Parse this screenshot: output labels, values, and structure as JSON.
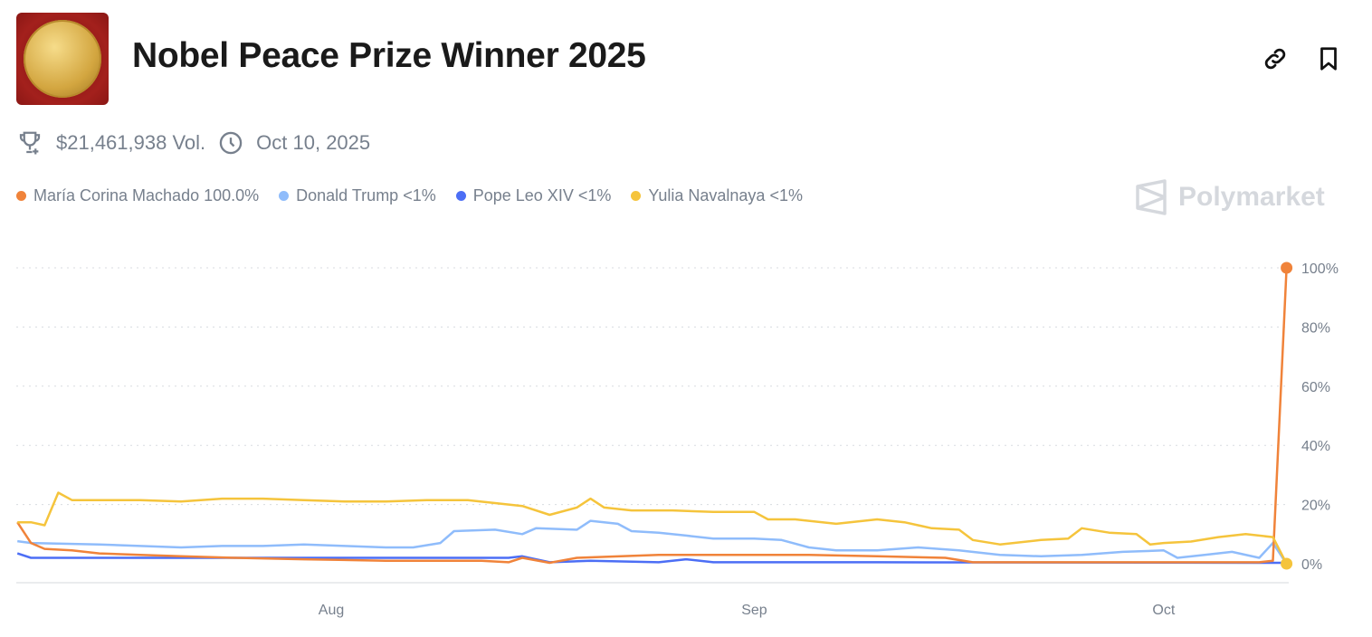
{
  "header": {
    "title": "Nobel Peace Prize Winner 2025",
    "icons": [
      "nobel-medal-image",
      "link-icon",
      "bookmark-icon"
    ]
  },
  "meta": {
    "volume": "$21,461,938 Vol.",
    "date": "Oct 10, 2025",
    "icons": [
      "trophy-icon",
      "clock-icon"
    ]
  },
  "brand": {
    "name": "Polymarket"
  },
  "legend": [
    {
      "label": "María Corina Machado 100.0%",
      "color": "#F0833A"
    },
    {
      "label": "Donald Trump <1%",
      "color": "#8FBCFB"
    },
    {
      "label": "Pope Leo XIV <1%",
      "color": "#4C6EF5"
    },
    {
      "label": "Yulia Navalnaya <1%",
      "color": "#F5C43C"
    }
  ],
  "chart_data": {
    "type": "line",
    "ylim": [
      0,
      100
    ],
    "yticks": [
      "0%",
      "20%",
      "40%",
      "60%",
      "80%",
      "100%"
    ],
    "ytick_values": [
      0,
      20,
      40,
      60,
      80,
      100
    ],
    "xticks": [
      {
        "label": "Aug",
        "date": "2025-08-01"
      },
      {
        "label": "Sep",
        "date": "2025-09-01"
      },
      {
        "label": "Oct",
        "date": "2025-10-01"
      }
    ],
    "grid": "horizontal dotted",
    "legend_placement": "top-left",
    "series": [
      {
        "name": "María Corina Machado",
        "color": "#F0833A",
        "points": [
          [
            "2025-07-09",
            14
          ],
          [
            "2025-07-10",
            7
          ],
          [
            "2025-07-11",
            5
          ],
          [
            "2025-07-13",
            4.5
          ],
          [
            "2025-07-15",
            3.5
          ],
          [
            "2025-07-18",
            3
          ],
          [
            "2025-07-21",
            2.5
          ],
          [
            "2025-07-25",
            2
          ],
          [
            "2025-07-30",
            1.5
          ],
          [
            "2025-08-05",
            1
          ],
          [
            "2025-08-12",
            1
          ],
          [
            "2025-08-14",
            0.5
          ],
          [
            "2025-08-15",
            2
          ],
          [
            "2025-08-17",
            0.3
          ],
          [
            "2025-08-19",
            2
          ],
          [
            "2025-08-25",
            3
          ],
          [
            "2025-09-05",
            3
          ],
          [
            "2025-09-10",
            2.5
          ],
          [
            "2025-09-15",
            2
          ],
          [
            "2025-09-17",
            0.5
          ],
          [
            "2025-10-08",
            0.5
          ],
          [
            "2025-10-09",
            1
          ],
          [
            "2025-10-10",
            100
          ]
        ]
      },
      {
        "name": "Donald Trump",
        "color": "#8FBCFB",
        "points": [
          [
            "2025-07-09",
            7.6
          ],
          [
            "2025-07-10",
            7
          ],
          [
            "2025-07-15",
            6.5
          ],
          [
            "2025-07-21",
            5.5
          ],
          [
            "2025-07-24",
            6
          ],
          [
            "2025-07-27",
            6
          ],
          [
            "2025-07-30",
            6.5
          ],
          [
            "2025-08-02",
            6
          ],
          [
            "2025-08-05",
            5.5
          ],
          [
            "2025-08-07",
            5.5
          ],
          [
            "2025-08-09",
            7
          ],
          [
            "2025-08-10",
            11
          ],
          [
            "2025-08-13",
            11.5
          ],
          [
            "2025-08-15",
            10
          ],
          [
            "2025-08-16",
            12
          ],
          [
            "2025-08-19",
            11.5
          ],
          [
            "2025-08-20",
            14.5
          ],
          [
            "2025-08-22",
            13.5
          ],
          [
            "2025-08-23",
            11
          ],
          [
            "2025-08-25",
            10.5
          ],
          [
            "2025-08-27",
            9.5
          ],
          [
            "2025-08-29",
            8.5
          ],
          [
            "2025-09-01",
            8.5
          ],
          [
            "2025-09-03",
            8
          ],
          [
            "2025-09-05",
            5.5
          ],
          [
            "2025-09-07",
            4.5
          ],
          [
            "2025-09-10",
            4.5
          ],
          [
            "2025-09-13",
            5.5
          ],
          [
            "2025-09-16",
            4.5
          ],
          [
            "2025-09-19",
            3
          ],
          [
            "2025-09-22",
            2.5
          ],
          [
            "2025-09-25",
            3
          ],
          [
            "2025-09-28",
            4
          ],
          [
            "2025-10-01",
            4.5
          ],
          [
            "2025-10-02",
            2
          ],
          [
            "2025-10-04",
            3
          ],
          [
            "2025-10-06",
            4
          ],
          [
            "2025-10-08",
            2
          ],
          [
            "2025-10-09",
            7
          ],
          [
            "2025-10-10",
            0
          ]
        ]
      },
      {
        "name": "Pope Leo XIV",
        "color": "#4C6EF5",
        "points": [
          [
            "2025-07-09",
            3.5
          ],
          [
            "2025-07-10",
            2
          ],
          [
            "2025-08-14",
            2
          ],
          [
            "2025-08-15",
            2.5
          ],
          [
            "2025-08-17",
            0.5
          ],
          [
            "2025-08-20",
            1
          ],
          [
            "2025-08-25",
            0.5
          ],
          [
            "2025-08-27",
            1.5
          ],
          [
            "2025-08-29",
            0.5
          ],
          [
            "2025-09-10",
            0.5
          ],
          [
            "2025-10-10",
            0.3
          ]
        ]
      },
      {
        "name": "Yulia Navalnaya",
        "color": "#F5C43C",
        "points": [
          [
            "2025-07-09",
            14
          ],
          [
            "2025-07-10",
            14
          ],
          [
            "2025-07-11",
            13
          ],
          [
            "2025-07-12",
            24
          ],
          [
            "2025-07-13",
            21.5
          ],
          [
            "2025-07-18",
            21.5
          ],
          [
            "2025-07-21",
            21
          ],
          [
            "2025-07-24",
            22
          ],
          [
            "2025-07-27",
            22
          ],
          [
            "2025-07-30",
            21.5
          ],
          [
            "2025-08-02",
            21
          ],
          [
            "2025-08-05",
            21
          ],
          [
            "2025-08-08",
            21.5
          ],
          [
            "2025-08-11",
            21.5
          ],
          [
            "2025-08-13",
            20.5
          ],
          [
            "2025-08-15",
            19.5
          ],
          [
            "2025-08-17",
            16.5
          ],
          [
            "2025-08-19",
            19
          ],
          [
            "2025-08-20",
            22
          ],
          [
            "2025-08-21",
            19
          ],
          [
            "2025-08-23",
            18
          ],
          [
            "2025-08-26",
            18
          ],
          [
            "2025-08-29",
            17.5
          ],
          [
            "2025-09-01",
            17.5
          ],
          [
            "2025-09-02",
            15
          ],
          [
            "2025-09-04",
            15
          ],
          [
            "2025-09-07",
            13.5
          ],
          [
            "2025-09-10",
            15
          ],
          [
            "2025-09-12",
            14
          ],
          [
            "2025-09-14",
            12
          ],
          [
            "2025-09-16",
            11.5
          ],
          [
            "2025-09-17",
            8
          ],
          [
            "2025-09-19",
            6.5
          ],
          [
            "2025-09-22",
            8
          ],
          [
            "2025-09-24",
            8.5
          ],
          [
            "2025-09-25",
            12
          ],
          [
            "2025-09-27",
            10.5
          ],
          [
            "2025-09-29",
            10
          ],
          [
            "2025-09-30",
            6.5
          ],
          [
            "2025-10-01",
            7
          ],
          [
            "2025-10-03",
            7.5
          ],
          [
            "2025-10-05",
            9
          ],
          [
            "2025-10-07",
            10
          ],
          [
            "2025-10-09",
            9
          ],
          [
            "2025-10-10",
            0
          ]
        ]
      }
    ]
  }
}
